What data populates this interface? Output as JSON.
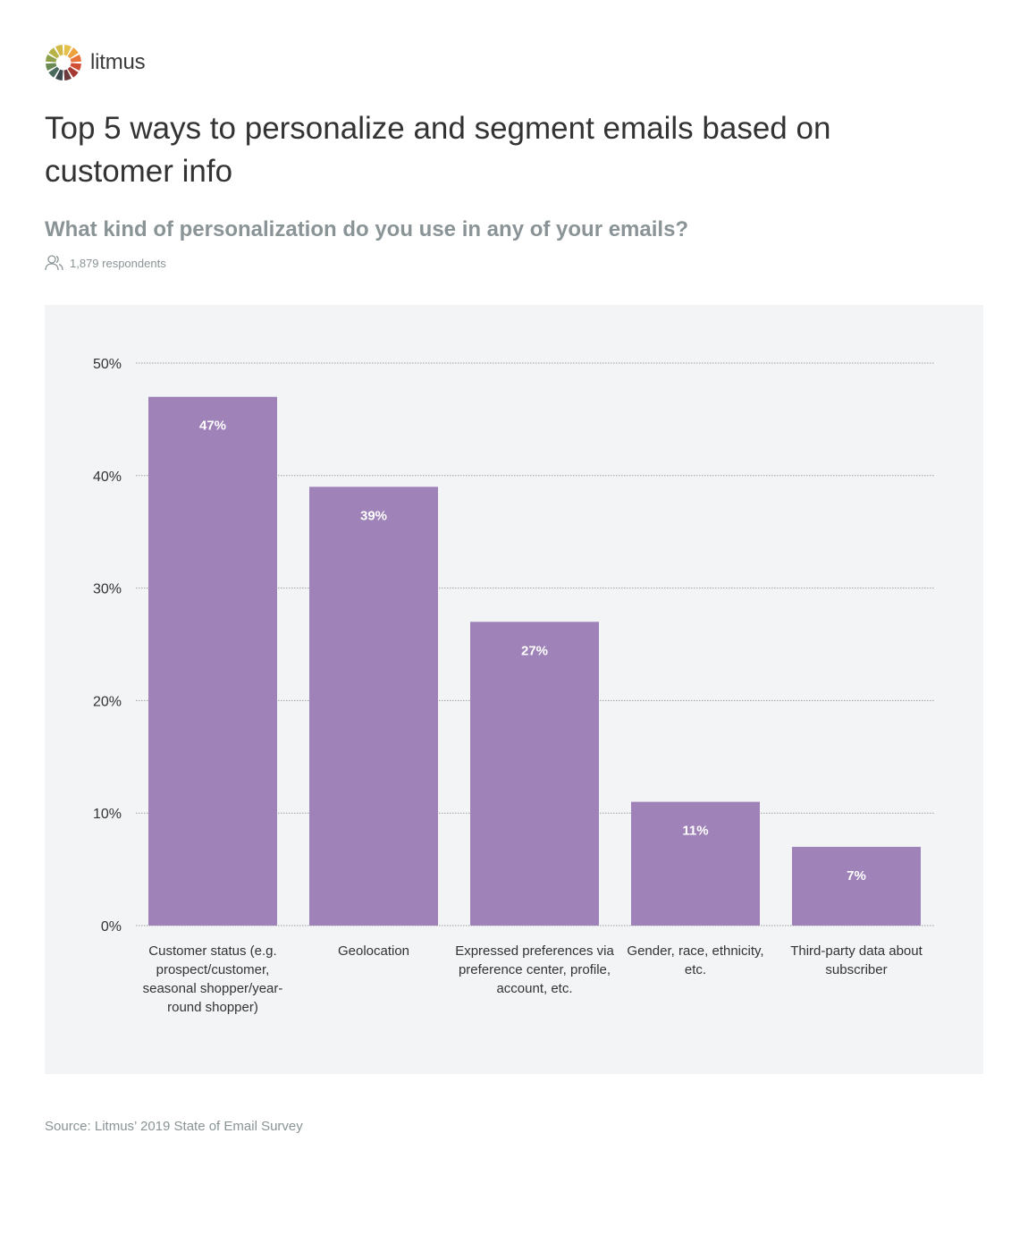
{
  "brand": {
    "name": "litmus"
  },
  "header": {
    "title": "Top 5 ways to personalize and segment emails based on customer info",
    "subtitle": "What kind of personalization do you use in any of your emails?",
    "respondents": "1,879 respondents",
    "respondents_icon": "users-icon"
  },
  "footer": {
    "source": "Source: Litmus’ 2019 State of Email Survey"
  },
  "colors": {
    "bar": "#9e82b8",
    "panel": "#f3f4f6",
    "title": "#333333",
    "muted": "#8a9496"
  },
  "chart_data": {
    "type": "bar",
    "categories": [
      "Customer status (e.g. prospect/customer, seasonal shopper/year-round shopper)",
      "Geolocation",
      "Expressed preferences via preference center, profile, account, etc.",
      "Gender, race, ethnicity, etc.",
      "Third-party data about subscriber"
    ],
    "values": [
      47,
      39,
      27,
      11,
      7
    ],
    "data_labels": [
      "47%",
      "39%",
      "27%",
      "11%",
      "7%"
    ],
    "ylim": [
      0,
      50
    ],
    "y_ticks": [
      0,
      10,
      20,
      30,
      40,
      50
    ],
    "y_tick_labels": [
      "0%",
      "10%",
      "20%",
      "30%",
      "40%",
      "50%"
    ],
    "grid": true,
    "xlabel": "",
    "ylabel": ""
  }
}
